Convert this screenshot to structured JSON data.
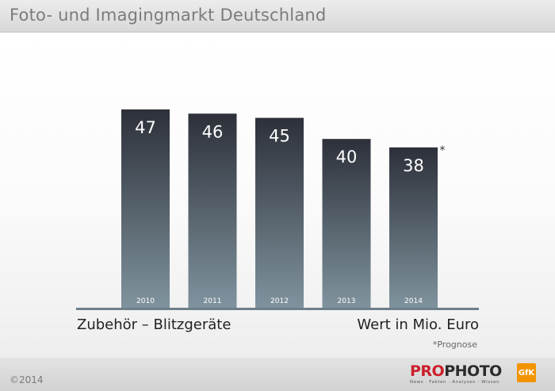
{
  "header": {
    "title": "Foto- und Imagingmarkt Deutschland"
  },
  "chart_data": {
    "type": "bar",
    "categories": [
      "2010",
      "2011",
      "2012",
      "2013",
      "2014"
    ],
    "values": [
      47,
      46,
      45,
      40,
      38
    ],
    "value_labels": [
      "47",
      "46",
      "45",
      "40",
      "38"
    ],
    "ylim": [
      0,
      50
    ],
    "title": "Zubehör – Blitzgeräte",
    "unit_label": "Wert in Mio. Euro",
    "forecast_marker": {
      "category": "2014",
      "symbol": "*"
    },
    "footnote": "*Prognose",
    "grid": false,
    "colors": {
      "bar_top": "#2d3039",
      "bar_bottom": "#7f939e",
      "axis": "#6d7f8a",
      "value_text": "#ffffff"
    }
  },
  "footer": {
    "copyright": "©2014",
    "logo_part1": "PRO",
    "logo_part2": "PHOTO",
    "logo_tagline": "News · Fakten · Analysen · Wissen",
    "badge": "GfK"
  }
}
